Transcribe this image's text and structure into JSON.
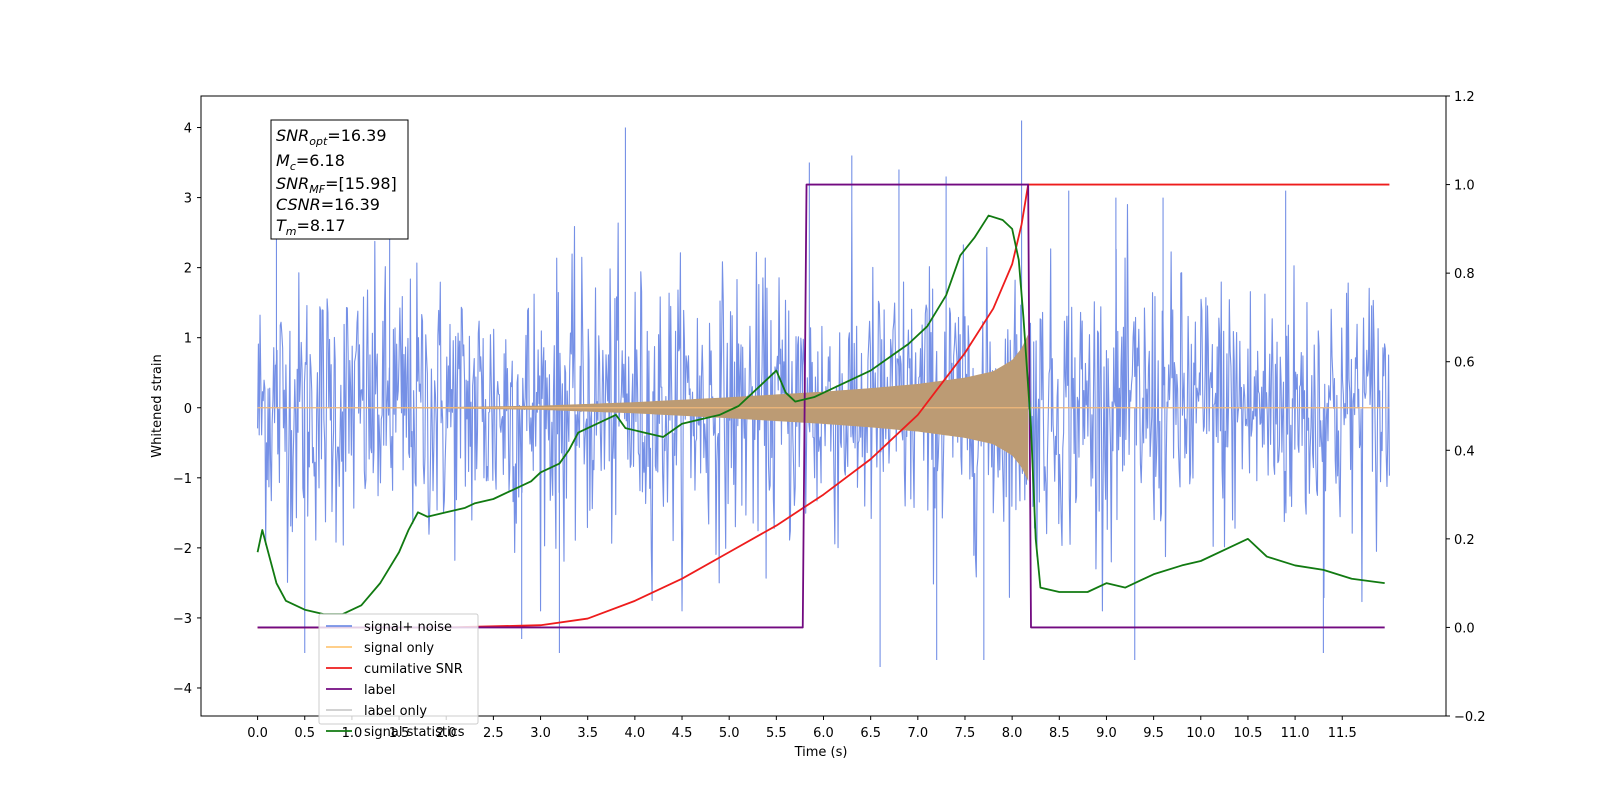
{
  "chart_data": {
    "type": "line",
    "xlabel": "Time (s)",
    "ylabel": "Whitened strain",
    "xlim": [
      -0.6,
      12.6
    ],
    "ylim_left": [
      -4.4,
      4.45
    ],
    "ylim_right": [
      -0.2,
      1.2
    ],
    "x_ticks": [
      0.0,
      0.5,
      1.0,
      1.5,
      2.0,
      2.5,
      3.0,
      3.5,
      4.0,
      4.5,
      5.0,
      5.5,
      6.0,
      6.5,
      7.0,
      7.5,
      8.0,
      8.5,
      9.0,
      9.5,
      10.0,
      10.5,
      11.0,
      11.5
    ],
    "x_tick_labels": [
      "0.0",
      "0.5",
      "1.0",
      "1.5",
      "2.0",
      "2.5",
      "3.0",
      "3.5",
      "4.0",
      "4.5",
      "5.0",
      "5.5",
      "6.0",
      "6.5",
      "7.0",
      "7.5",
      "8.0",
      "8.5",
      "9.0",
      "9.5",
      "10.0",
      "10.5",
      "11.0",
      "11.5"
    ],
    "y_left_ticks": [
      4,
      3,
      2,
      1,
      0,
      -1,
      -2,
      -3,
      -4
    ],
    "y_left_tick_labels": [
      "4",
      "3",
      "2",
      "1",
      "0",
      "−1",
      "−2",
      "−3",
      "−4"
    ],
    "y_right_ticks": [
      1.2,
      1.0,
      0.8,
      0.6,
      0.4,
      0.2,
      0.0,
      -0.2
    ],
    "y_right_tick_labels": [
      "1.2",
      "1.0",
      "0.8",
      "0.6",
      "0.4",
      "0.2",
      "0.0",
      "−0.2"
    ],
    "grid": false,
    "legend_position": "bottom-left",
    "annotation": {
      "lines": [
        {
          "sym": "SNR",
          "sub": "opt",
          "val": "=16.39"
        },
        {
          "sym": "M",
          "sub": "c",
          "val": "=6.18"
        },
        {
          "sym": "SNR",
          "sub": "MF",
          "val": "=[15.98]"
        },
        {
          "sym": "CSNR",
          "sub": "",
          "val": "=16.39"
        },
        {
          "sym": "T",
          "sub": "m",
          "val": "=8.17"
        }
      ]
    },
    "colors": {
      "signal_noise": "#7590e6",
      "signal_only": "#bc9b74",
      "cumulative_snr": "#ee1c1c",
      "label": "#720a80",
      "signal_statistics": "#117a11"
    },
    "series": [
      {
        "name": "signal+ noise",
        "axis": "left",
        "style": "noise-band",
        "x_range": [
          0.0,
          12.0
        ],
        "envelope_typical": 1.9,
        "spikes": [
          [
            0.2,
            2.6
          ],
          [
            1.4,
            2.7
          ],
          [
            3.9,
            4.0
          ],
          [
            5.85,
            3.5
          ],
          [
            6.3,
            3.6
          ],
          [
            6.8,
            3.4
          ],
          [
            7.3,
            3.3
          ],
          [
            8.1,
            4.1
          ],
          [
            8.6,
            3.1
          ],
          [
            9.1,
            3.0
          ],
          [
            9.6,
            3.0
          ],
          [
            10.9,
            3.1
          ],
          [
            0.5,
            -3.5
          ],
          [
            2.8,
            -3.3
          ],
          [
            3.2,
            -3.5
          ],
          [
            6.6,
            -3.7
          ],
          [
            7.2,
            -3.6
          ],
          [
            7.7,
            -3.6
          ],
          [
            9.3,
            -3.6
          ],
          [
            11.3,
            -3.5
          ]
        ]
      },
      {
        "name": "signal only",
        "axis": "left",
        "style": "chirp",
        "x": [
          0.0,
          2.0,
          3.0,
          4.0,
          5.0,
          6.0,
          6.5,
          7.0,
          7.5,
          7.8,
          8.0,
          8.1,
          8.17
        ],
        "amplitude": [
          0.0,
          0.01,
          0.03,
          0.08,
          0.15,
          0.23,
          0.28,
          0.34,
          0.43,
          0.52,
          0.68,
          0.85,
          1.05
        ]
      },
      {
        "name": "cumilative SNR",
        "axis": "right",
        "x": [
          0.0,
          1.0,
          2.0,
          3.0,
          3.5,
          4.0,
          4.5,
          5.0,
          5.5,
          6.0,
          6.5,
          7.0,
          7.5,
          7.8,
          8.0,
          8.1,
          8.17,
          12.0
        ],
        "values": [
          0.0,
          0.0,
          0.0,
          0.005,
          0.02,
          0.06,
          0.11,
          0.17,
          0.23,
          0.3,
          0.38,
          0.48,
          0.62,
          0.72,
          0.82,
          0.91,
          1.0,
          1.0
        ]
      },
      {
        "name": "label",
        "axis": "right",
        "x": [
          0.0,
          5.78,
          5.82,
          8.17,
          8.2,
          11.95
        ],
        "values": [
          0.0,
          0.0,
          1.0,
          1.0,
          0.0,
          0.0
        ]
      },
      {
        "name": "label only",
        "axis": "right",
        "x": [],
        "values": []
      },
      {
        "name": "signal statistics",
        "axis": "right",
        "x": [
          0.0,
          0.05,
          0.1,
          0.2,
          0.3,
          0.5,
          0.7,
          0.9,
          1.1,
          1.3,
          1.5,
          1.6,
          1.7,
          1.8,
          2.0,
          2.2,
          2.3,
          2.5,
          2.7,
          2.9,
          3.0,
          3.2,
          3.3,
          3.4,
          3.6,
          3.8,
          3.9,
          4.1,
          4.3,
          4.5,
          4.7,
          4.9,
          5.1,
          5.3,
          5.4,
          5.5,
          5.6,
          5.7,
          5.9,
          6.1,
          6.3,
          6.5,
          6.7,
          6.9,
          7.1,
          7.3,
          7.45,
          7.6,
          7.75,
          7.9,
          8.0,
          8.07,
          8.12,
          8.2,
          8.25,
          8.3,
          8.5,
          8.8,
          9.0,
          9.2,
          9.5,
          9.8,
          10.0,
          10.3,
          10.5,
          10.7,
          11.0,
          11.3,
          11.6,
          11.95
        ],
        "values": [
          0.17,
          0.22,
          0.18,
          0.1,
          0.06,
          0.04,
          0.03,
          0.03,
          0.05,
          0.1,
          0.17,
          0.22,
          0.26,
          0.25,
          0.26,
          0.27,
          0.28,
          0.29,
          0.31,
          0.33,
          0.35,
          0.37,
          0.4,
          0.44,
          0.46,
          0.48,
          0.45,
          0.44,
          0.43,
          0.46,
          0.47,
          0.48,
          0.5,
          0.54,
          0.56,
          0.58,
          0.53,
          0.51,
          0.52,
          0.54,
          0.56,
          0.58,
          0.61,
          0.64,
          0.68,
          0.75,
          0.84,
          0.88,
          0.93,
          0.92,
          0.9,
          0.83,
          0.7,
          0.45,
          0.2,
          0.09,
          0.08,
          0.08,
          0.1,
          0.09,
          0.12,
          0.14,
          0.15,
          0.18,
          0.2,
          0.16,
          0.14,
          0.13,
          0.11,
          0.1
        ]
      }
    ],
    "legend": [
      {
        "label": "signal+ noise",
        "color_key": "signal_noise"
      },
      {
        "label": "signal only",
        "color_key": "signal_only_legend"
      },
      {
        "label": "cumilative SNR",
        "color_key": "cumulative_snr"
      },
      {
        "label": "label",
        "color_key": "label"
      },
      {
        "label": "label only",
        "color_key": "label_only"
      },
      {
        "label": "signal statistics",
        "color_key": "signal_statistics"
      }
    ],
    "legend_colors": {
      "signal_only_legend": "#ffc87a",
      "label_only": "#cccccc"
    }
  }
}
